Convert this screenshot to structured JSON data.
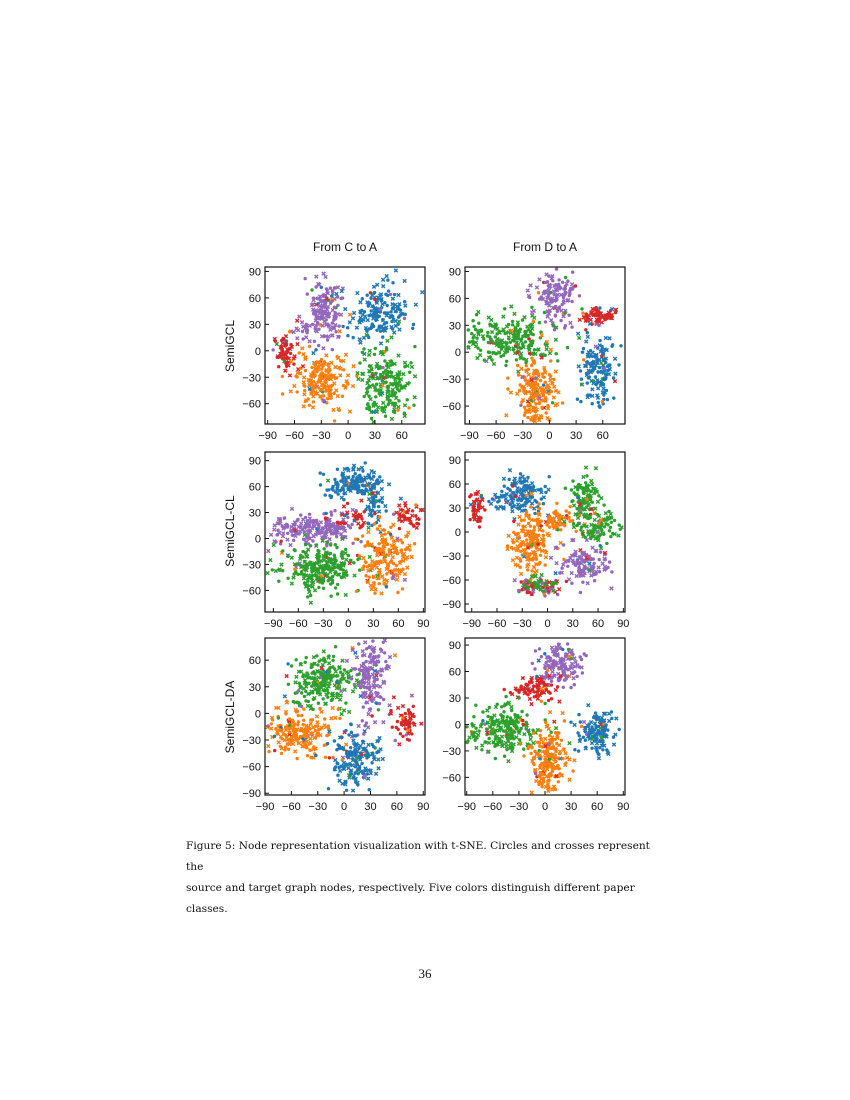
{
  "figure": {
    "column_titles": [
      "From C to A",
      "From D to A"
    ],
    "row_labels": [
      "SemiGCL",
      "SemiGCL-CL",
      "SemiGCL-DA"
    ],
    "caption_line1": "Figure 5:  Node representation visualization with t-SNE. Circles and crosses represent the",
    "caption_line2": "source and target graph nodes, respectively. Five colors distinguish different paper classes."
  },
  "page_number": "36",
  "colors": {
    "blue": "#1f77b4",
    "orange": "#ff7f0e",
    "green": "#2ca02c",
    "red": "#d62728",
    "purple": "#9467bd"
  },
  "chart_data": [
    {
      "type": "scatter",
      "row": "SemiGCL",
      "col": "From C to A",
      "xlim": [
        -93,
        86
      ],
      "ylim": [
        -83,
        95
      ],
      "xticks": [
        -90,
        -60,
        -30,
        0,
        30,
        60
      ],
      "yticks": [
        -60,
        -30,
        0,
        30,
        60,
        90
      ],
      "clusters": [
        {
          "c": "purple",
          "x": -25,
          "y": 45,
          "sx": 9,
          "sy": 18,
          "n": 150
        },
        {
          "c": "purple",
          "x": -52,
          "y": 25,
          "sx": 6,
          "sy": 8,
          "n": 20
        },
        {
          "c": "blue",
          "x": 35,
          "y": 42,
          "sx": 16,
          "sy": 16,
          "n": 170
        },
        {
          "c": "red",
          "x": -72,
          "y": -5,
          "sx": 6,
          "sy": 11,
          "n": 60
        },
        {
          "c": "orange",
          "x": -28,
          "y": -35,
          "sx": 16,
          "sy": 17,
          "n": 190
        },
        {
          "c": "green",
          "x": 40,
          "y": -35,
          "sx": 14,
          "sy": 21,
          "n": 200
        }
      ]
    },
    {
      "type": "scatter",
      "row": "SemiGCL",
      "col": "From D to A",
      "xlim": [
        -95,
        85
      ],
      "ylim": [
        -80,
        95
      ],
      "xticks": [
        -90,
        -60,
        -30,
        0,
        30,
        60
      ],
      "yticks": [
        -60,
        -30,
        0,
        30,
        60,
        90
      ],
      "clusters": [
        {
          "c": "purple",
          "x": 5,
          "y": 62,
          "sx": 11,
          "sy": 14,
          "n": 130
        },
        {
          "c": "red",
          "x": 55,
          "y": 40,
          "sx": 12,
          "sy": 5,
          "n": 70
        },
        {
          "c": "green",
          "x": -45,
          "y": 15,
          "sx": 25,
          "sy": 14,
          "n": 230
        },
        {
          "c": "orange",
          "x": -15,
          "y": -45,
          "sx": 12,
          "sy": 19,
          "n": 200
        },
        {
          "c": "blue",
          "x": 55,
          "y": -18,
          "sx": 11,
          "sy": 20,
          "n": 150
        }
      ]
    },
    {
      "type": "scatter",
      "row": "SemiGCL-CL",
      "col": "From C to A",
      "xlim": [
        -100,
        92
      ],
      "ylim": [
        -85,
        100
      ],
      "xticks": [
        -90,
        -60,
        -30,
        0,
        30,
        60,
        90
      ],
      "yticks": [
        -60,
        -30,
        0,
        30,
        60,
        90
      ],
      "clusters": [
        {
          "c": "blue",
          "x": 5,
          "y": 65,
          "sx": 17,
          "sy": 9,
          "n": 150
        },
        {
          "c": "blue",
          "x": 30,
          "y": 40,
          "sx": 6,
          "sy": 14,
          "n": 50
        },
        {
          "c": "purple",
          "x": -55,
          "y": 12,
          "sx": 19,
          "sy": 9,
          "n": 120
        },
        {
          "c": "purple",
          "x": -20,
          "y": 15,
          "sx": 13,
          "sy": 9,
          "n": 80
        },
        {
          "c": "red",
          "x": 5,
          "y": 25,
          "sx": 9,
          "sy": 6,
          "n": 30
        },
        {
          "c": "red",
          "x": 70,
          "y": 25,
          "sx": 9,
          "sy": 7,
          "n": 45
        },
        {
          "c": "green",
          "x": -35,
          "y": -35,
          "sx": 24,
          "sy": 14,
          "n": 260
        },
        {
          "c": "orange",
          "x": 45,
          "y": -22,
          "sx": 15,
          "sy": 19,
          "n": 180
        }
      ]
    },
    {
      "type": "scatter",
      "row": "SemiGCL-CL",
      "col": "From D to A",
      "xlim": [
        -98,
        92
      ],
      "ylim": [
        -100,
        100
      ],
      "xticks": [
        -90,
        -60,
        -30,
        0,
        30,
        60,
        90
      ],
      "yticks": [
        -90,
        -60,
        -30,
        0,
        30,
        60,
        90
      ],
      "clusters": [
        {
          "c": "red",
          "x": -83,
          "y": 30,
          "sx": 5,
          "sy": 11,
          "n": 45
        },
        {
          "c": "blue",
          "x": -35,
          "y": 45,
          "sx": 15,
          "sy": 12,
          "n": 150
        },
        {
          "c": "orange",
          "x": -22,
          "y": -15,
          "sx": 12,
          "sy": 20,
          "n": 160
        },
        {
          "c": "orange",
          "x": 8,
          "y": 15,
          "sx": 12,
          "sy": 8,
          "n": 70
        },
        {
          "c": "green",
          "x": 45,
          "y": 42,
          "sx": 9,
          "sy": 15,
          "n": 110
        },
        {
          "c": "green",
          "x": 62,
          "y": 5,
          "sx": 14,
          "sy": 9,
          "n": 90
        },
        {
          "c": "purple",
          "x": 42,
          "y": -40,
          "sx": 15,
          "sy": 12,
          "n": 120
        },
        {
          "c": "purple",
          "x": -10,
          "y": -70,
          "sx": 14,
          "sy": 5,
          "n": 40
        },
        {
          "c": "red",
          "x": -10,
          "y": -68,
          "sx": 14,
          "sy": 5,
          "n": 30
        },
        {
          "c": "green",
          "x": -15,
          "y": -65,
          "sx": 12,
          "sy": 6,
          "n": 30
        }
      ]
    },
    {
      "type": "scatter",
      "row": "SemiGCL-DA",
      "col": "From C to A",
      "xlim": [
        -90,
        92
      ],
      "ylim": [
        -92,
        85
      ],
      "xticks": [
        -90,
        -60,
        -30,
        0,
        30,
        60,
        90
      ],
      "yticks": [
        -90,
        -60,
        -30,
        0,
        30,
        60
      ],
      "clusters": [
        {
          "c": "green",
          "x": -25,
          "y": 38,
          "sx": 17,
          "sy": 15,
          "n": 220
        },
        {
          "c": "orange",
          "x": -52,
          "y": -20,
          "sx": 20,
          "sy": 13,
          "n": 200
        },
        {
          "c": "purple",
          "x": 30,
          "y": 42,
          "sx": 11,
          "sy": 24,
          "n": 180
        },
        {
          "c": "red",
          "x": 70,
          "y": -12,
          "sx": 8,
          "sy": 9,
          "n": 60
        },
        {
          "c": "blue",
          "x": 15,
          "y": -52,
          "sx": 14,
          "sy": 16,
          "n": 170
        }
      ]
    },
    {
      "type": "scatter",
      "row": "SemiGCL-DA",
      "col": "From D to A",
      "xlim": [
        -92,
        92
      ],
      "ylim": [
        -80,
        98
      ],
      "xticks": [
        -90,
        -60,
        -30,
        0,
        30,
        60,
        90
      ],
      "yticks": [
        -60,
        -30,
        0,
        30,
        60,
        90
      ],
      "clusters": [
        {
          "c": "purple",
          "x": 15,
          "y": 68,
          "sx": 14,
          "sy": 12,
          "n": 150
        },
        {
          "c": "red",
          "x": -12,
          "y": 40,
          "sx": 12,
          "sy": 7,
          "n": 80
        },
        {
          "c": "green",
          "x": -50,
          "y": -5,
          "sx": 20,
          "sy": 14,
          "n": 230
        },
        {
          "c": "orange",
          "x": 5,
          "y": -40,
          "sx": 11,
          "sy": 21,
          "n": 200
        },
        {
          "c": "blue",
          "x": 60,
          "y": -8,
          "sx": 12,
          "sy": 12,
          "n": 130
        }
      ]
    }
  ]
}
